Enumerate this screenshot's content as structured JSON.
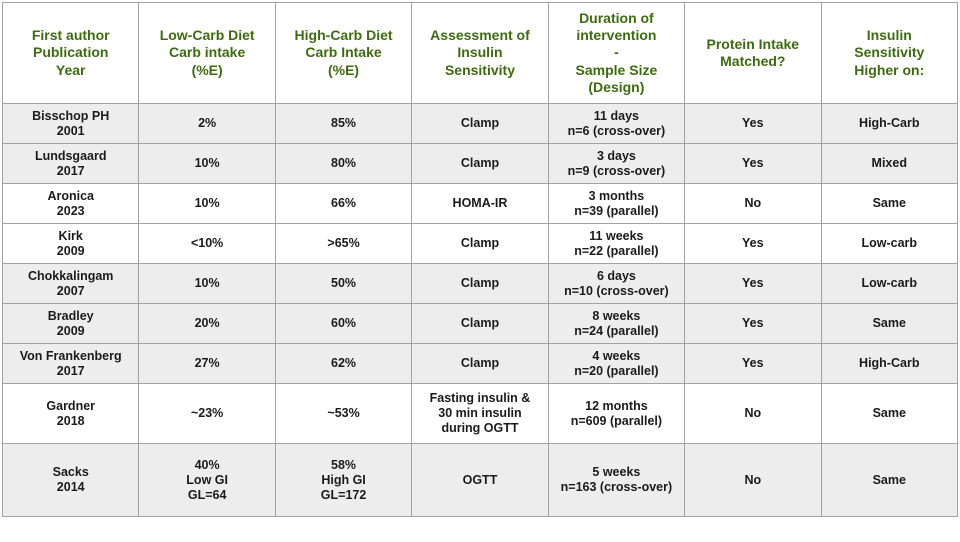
{
  "colors": {
    "header_text": "#3d6c0f",
    "body_text": "#1b1b1b",
    "shaded_row_bg": "#ededed",
    "white_row_bg": "#ffffff",
    "border": "#a3a3a3"
  },
  "table": {
    "headers": {
      "author": "First author\nPublication\nYear",
      "low_carb": "Low-Carb Diet\nCarb intake\n(%E)",
      "high_carb": "High-Carb Diet\nCarb Intake\n(%E)",
      "assessment": "Assessment of\nInsulin\nSensitivity",
      "duration": "Duration of\nintervention\n-\nSample Size\n(Design)",
      "protein": "Protein Intake\nMatched?",
      "higher_on": "Insulin\nSensitivity\nHigher on:"
    },
    "rows": [
      {
        "author": "Bisschop PH\n2001",
        "low_carb": "2%",
        "high_carb": "85%",
        "assessment": "Clamp",
        "duration": "11 days\nn=6 (cross-over)",
        "protein": "Yes",
        "higher_on": "High-Carb"
      },
      {
        "author": "Lundsgaard\n2017",
        "low_carb": "10%",
        "high_carb": "80%",
        "assessment": "Clamp",
        "duration": "3 days\nn=9 (cross-over)",
        "protein": "Yes",
        "higher_on": "Mixed"
      },
      {
        "author": "Aronica\n2023",
        "low_carb": "10%",
        "high_carb": "66%",
        "assessment": "HOMA-IR",
        "duration": "3 months\nn=39 (parallel)",
        "protein": "No",
        "higher_on": "Same"
      },
      {
        "author": "Kirk\n2009",
        "low_carb": "<10%",
        "high_carb": ">65%",
        "assessment": "Clamp",
        "duration": "11 weeks\nn=22 (parallel)",
        "protein": "Yes",
        "higher_on": "Low-carb"
      },
      {
        "author": "Chokkalingam\n2007",
        "low_carb": "10%",
        "high_carb": "50%",
        "assessment": "Clamp",
        "duration": "6 days\nn=10 (cross-over)",
        "protein": "Yes",
        "higher_on": "Low-carb"
      },
      {
        "author": "Bradley\n2009",
        "low_carb": "20%",
        "high_carb": "60%",
        "assessment": "Clamp",
        "duration": "8 weeks\nn=24 (parallel)",
        "protein": "Yes",
        "higher_on": "Same"
      },
      {
        "author": "Von Frankenberg\n2017",
        "low_carb": "27%",
        "high_carb": "62%",
        "assessment": "Clamp",
        "duration": "4 weeks\nn=20 (parallel)",
        "protein": "Yes",
        "higher_on": "High-Carb"
      },
      {
        "author": "Gardner\n2018",
        "low_carb": "~23%",
        "high_carb": "~53%",
        "assessment": "Fasting insulin &\n30 min insulin\nduring OGTT",
        "duration": "12 months\nn=609 (parallel)",
        "protein": "No",
        "higher_on": "Same"
      },
      {
        "author": "Sacks\n2014",
        "low_carb": "40%\nLow GI\nGL=64",
        "high_carb": "58%\nHigh GI\nGL=172",
        "assessment": "OGTT",
        "duration": "5 weeks\nn=163 (cross-over)",
        "protein": "No",
        "higher_on": "Same"
      }
    ]
  }
}
